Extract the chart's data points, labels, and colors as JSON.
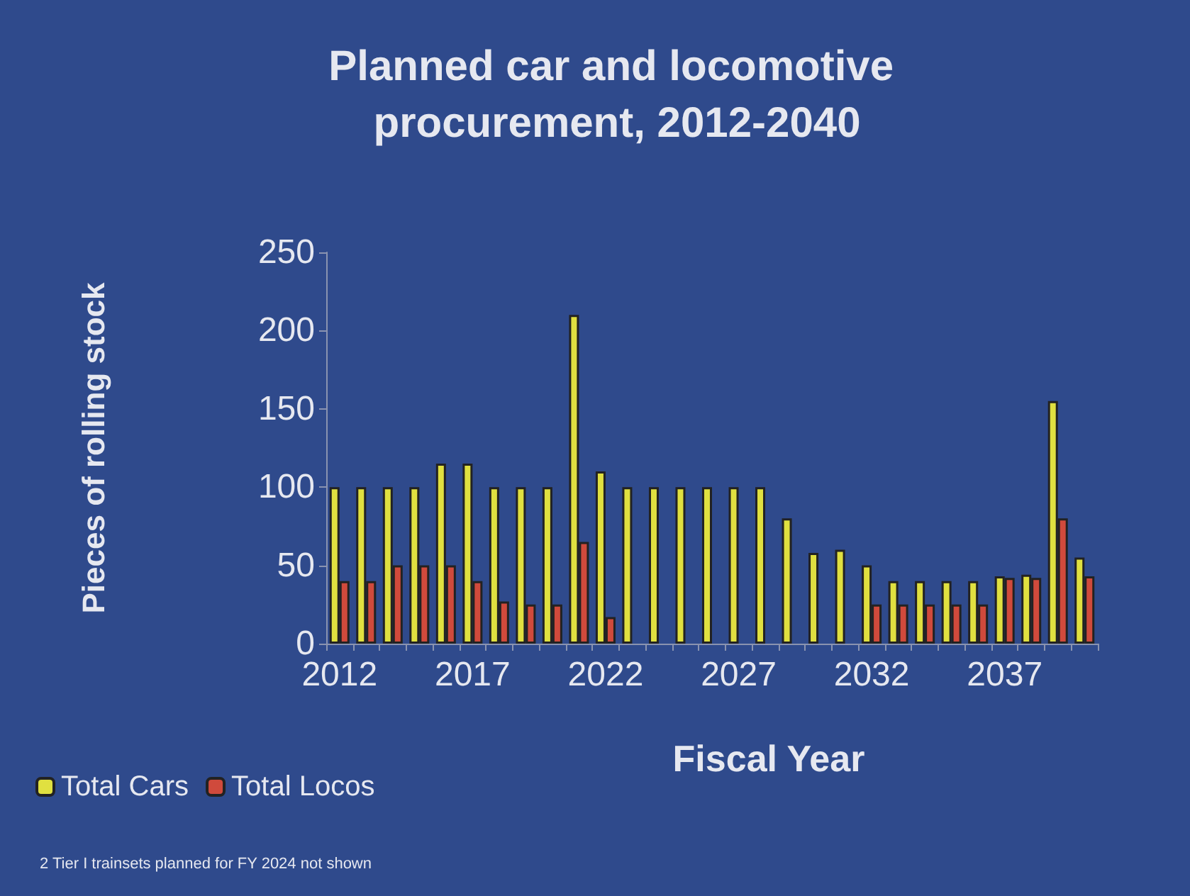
{
  "chart_data": {
    "type": "bar",
    "title": "Planned car and locomotive procurement, 2012-2040",
    "xlabel": "Fiscal Year",
    "ylabel": "Pieces of rolling stock",
    "categories": [
      "2012",
      null,
      null,
      null,
      null,
      "2017",
      null,
      null,
      null,
      null,
      "2022",
      null,
      null,
      null,
      null,
      "2027",
      null,
      null,
      null,
      null,
      "2032",
      null,
      null,
      null,
      null,
      "2037",
      null,
      null,
      null
    ],
    "series": [
      {
        "name": "Total Cars",
        "color": "#e0e040",
        "values": [
          100,
          100,
          100,
          100,
          115,
          115,
          100,
          100,
          100,
          210,
          110,
          100,
          100,
          100,
          100,
          100,
          100,
          80,
          58,
          60,
          50,
          40,
          40,
          40,
          40,
          43,
          44,
          155,
          55
        ]
      },
      {
        "name": "Total Locos",
        "color": "#d04a3c",
        "values": [
          40,
          40,
          50,
          50,
          50,
          40,
          27,
          25,
          25,
          65,
          17,
          0,
          0,
          0,
          0,
          0,
          0,
          0,
          0,
          0,
          25,
          25,
          25,
          25,
          25,
          42,
          42,
          80,
          43
        ]
      }
    ],
    "ylim": [
      0,
      250
    ],
    "yticks": [
      0,
      50,
      100,
      150,
      200,
      250
    ],
    "grid": false,
    "legend": "bottom left",
    "annotations": [
      "2 Tier I trainsets planned for FY 2024 not shown"
    ]
  }
}
